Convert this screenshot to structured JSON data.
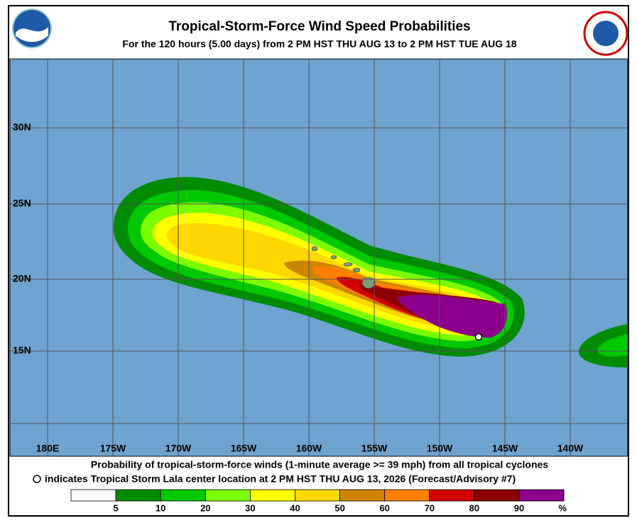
{
  "header": {
    "title": "Tropical-Storm-Force Wind Speed Probabilities",
    "subtitle": "For the 120 hours (5.00 days) from 2 PM HST THU AUG 13 to 2 PM HST TUE AUG 18"
  },
  "map": {
    "latitudes": [
      "30N",
      "25N",
      "20N",
      "15N"
    ],
    "longitudes": [
      "180E",
      "175W",
      "170W",
      "165W",
      "160W",
      "155W",
      "150W",
      "145W",
      "140W"
    ]
  },
  "caption": {
    "line1": "Probability of tropical-storm-force winds (1-minute average >= 39 mph) from all tropical cyclones",
    "line2": "indicates Tropical Storm Lala center location at 2 PM HST THU AUG 13, 2026 (Forecast/Advisory #7)"
  },
  "legend": {
    "colors": [
      "#ffffff",
      "#008b00",
      "#00c800",
      "#7cfc00",
      "#ffff00",
      "#ffd700",
      "#cd8500",
      "#ff8000",
      "#d00000",
      "#8b0000",
      "#8b008b"
    ],
    "labels": [
      5,
      10,
      20,
      30,
      40,
      50,
      60,
      70,
      80,
      90
    ],
    "unit": "%"
  }
}
